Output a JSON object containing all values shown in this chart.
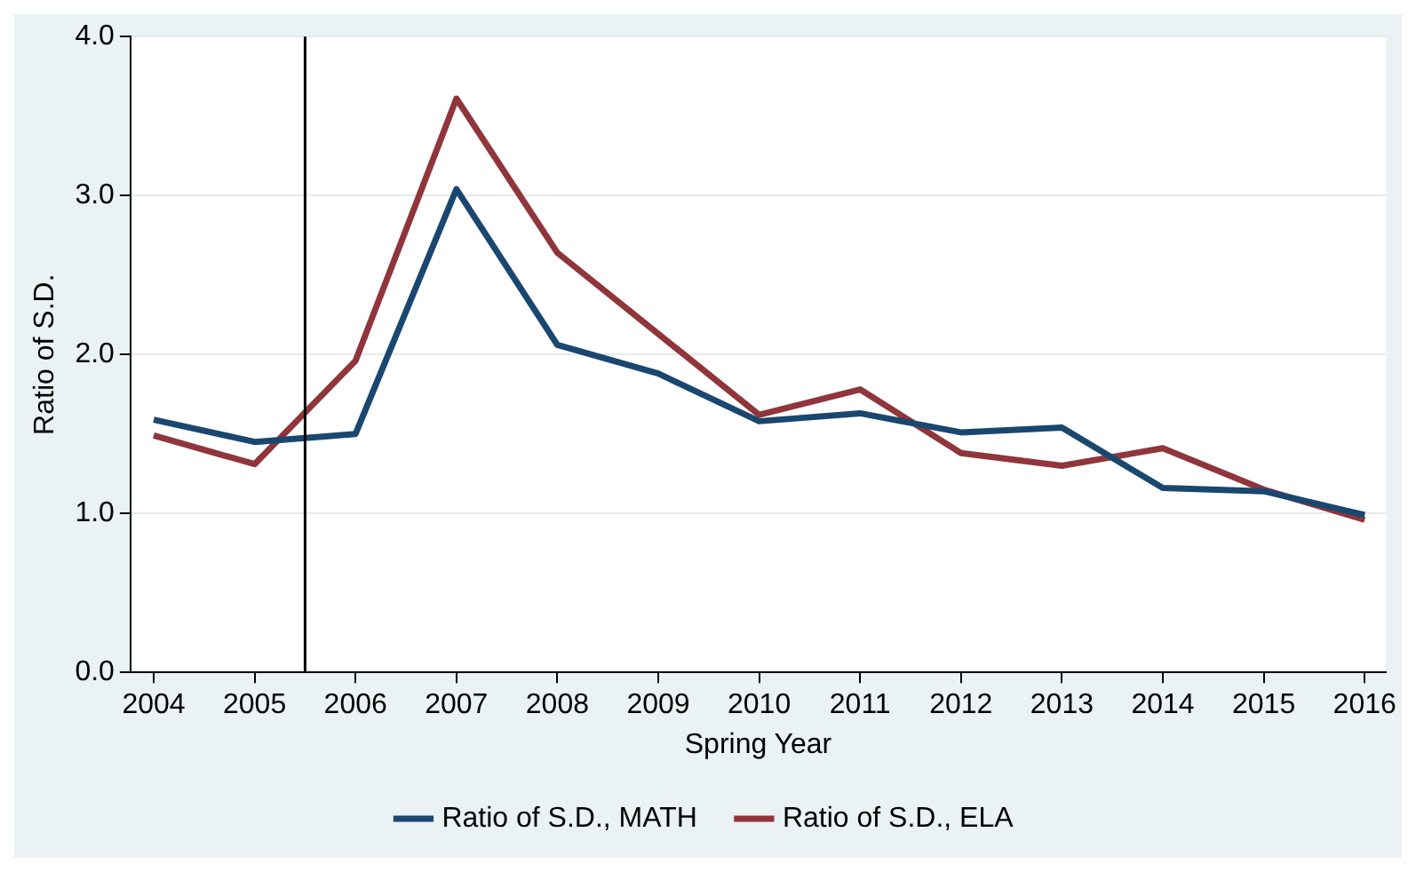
{
  "chart_data": {
    "type": "line",
    "xlabel": "Spring Year",
    "ylabel": "Ratio of S.D.",
    "x": [
      2004,
      2005,
      2006,
      2007,
      2008,
      2009,
      2010,
      2011,
      2012,
      2013,
      2014,
      2015,
      2016
    ],
    "series": [
      {
        "name": "Ratio of S.D., MATH",
        "color": "#1a476f",
        "values": [
          1.59,
          1.45,
          1.5,
          3.04,
          2.06,
          1.88,
          1.58,
          1.63,
          1.51,
          1.54,
          1.16,
          1.14,
          0.99
        ]
      },
      {
        "name": "Ratio of S.D., ELA",
        "color": "#90353b",
        "values": [
          1.49,
          1.31,
          1.96,
          3.61,
          2.64,
          2.13,
          1.62,
          1.78,
          1.38,
          1.3,
          1.41,
          1.15,
          0.96
        ]
      }
    ],
    "xlim": [
      2003.77,
      2016.21
    ],
    "xticks": [
      2004,
      2005,
      2006,
      2007,
      2008,
      2009,
      2010,
      2011,
      2012,
      2013,
      2014,
      2015,
      2016
    ],
    "ylim": [
      0,
      4
    ],
    "yticks": [
      {
        "value": 0,
        "label": "0.0"
      },
      {
        "value": 1,
        "label": "1.0"
      },
      {
        "value": 2,
        "label": "2.0"
      },
      {
        "value": 3,
        "label": "3.0"
      },
      {
        "value": 4,
        "label": "4.0"
      }
    ],
    "ref_lines": [
      {
        "axis": "x",
        "value": 2005.5,
        "color": "#000000"
      }
    ],
    "grid": "y",
    "legend": "bottom",
    "marker": "none",
    "line_style": "solid"
  }
}
